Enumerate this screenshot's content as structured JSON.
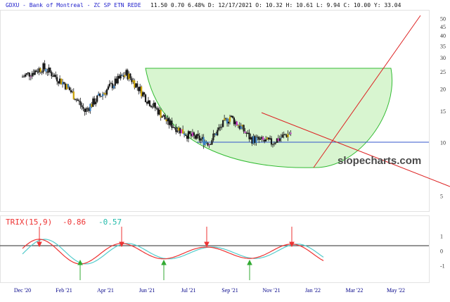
{
  "header": {
    "ticker_line": "GDXU - Bank of Montreal - ZC SP ETN REDE",
    "stats_line": "11.50  0.70  6.48%  D: 12/17/2021  O: 10.32  H: 10.61  L:  9.94  C: 10.00  Y: 33.04"
  },
  "watermark": "slopecharts.com",
  "colors": {
    "candle": "#1a1a1a",
    "candle_up_accent": "#c8a000",
    "candle_blue_accent": "#3a7fc2",
    "candle_pink_accent": "#d23ccc",
    "bowl_fill": "#d8f5d0",
    "bowl_stroke": "#33bb33",
    "trendline": "#dd2222",
    "support_line": "#3355cc",
    "trix_line": "#ee3333",
    "trix_signal": "#55cccc",
    "up_arrow": "#33aa33",
    "down_arrow": "#ee3333"
  },
  "chart_data": [
    {
      "type": "candlestick",
      "scale": "log",
      "y_tick_labels": [
        "50",
        "45",
        "40",
        "35",
        "30",
        "25",
        "20",
        "15",
        "10",
        "5"
      ],
      "ylim": [
        4.5,
        52
      ],
      "x_tick_labels": [
        "Dec '20",
        "Feb '21",
        "Apr '21",
        "Jun '21",
        "Jul '21",
        "Sep '21",
        "Nov '21",
        "Jan '22",
        "Mar '22",
        "May '22"
      ],
      "closes_by_month": [
        {
          "month": "Dec '20",
          "close": 23.5
        },
        {
          "month": "Jan '21",
          "close": 26.5
        },
        {
          "month": "Feb '21",
          "close": 21.5
        },
        {
          "month": "Mar '21",
          "close": 15.0
        },
        {
          "month": "Apr '21",
          "close": 19.5
        },
        {
          "month": "May '21",
          "close": 24.5
        },
        {
          "month": "Jun '21",
          "close": 17.5
        },
        {
          "month": "Jul '21",
          "close": 13.0
        },
        {
          "month": "Aug '21",
          "close": 11.0
        },
        {
          "month": "Sep '21",
          "close": 10.0
        },
        {
          "month": "Oct '21",
          "close": 14.0
        },
        {
          "month": "Nov '21",
          "close": 10.5
        },
        {
          "month": "Dec '21",
          "close": 10.0
        },
        {
          "month": "Jan '22",
          "close": 11.5
        }
      ],
      "support_level": 10.8
    },
    {
      "type": "line",
      "name": "TRIX(15,9)",
      "label": "TRIX(15,9)",
      "values_shown": [
        "-0.86",
        "-0.57"
      ],
      "y_tick_labels": [
        "1",
        "0",
        "-1"
      ],
      "ylim": [
        -1.7,
        1.5
      ]
    }
  ]
}
